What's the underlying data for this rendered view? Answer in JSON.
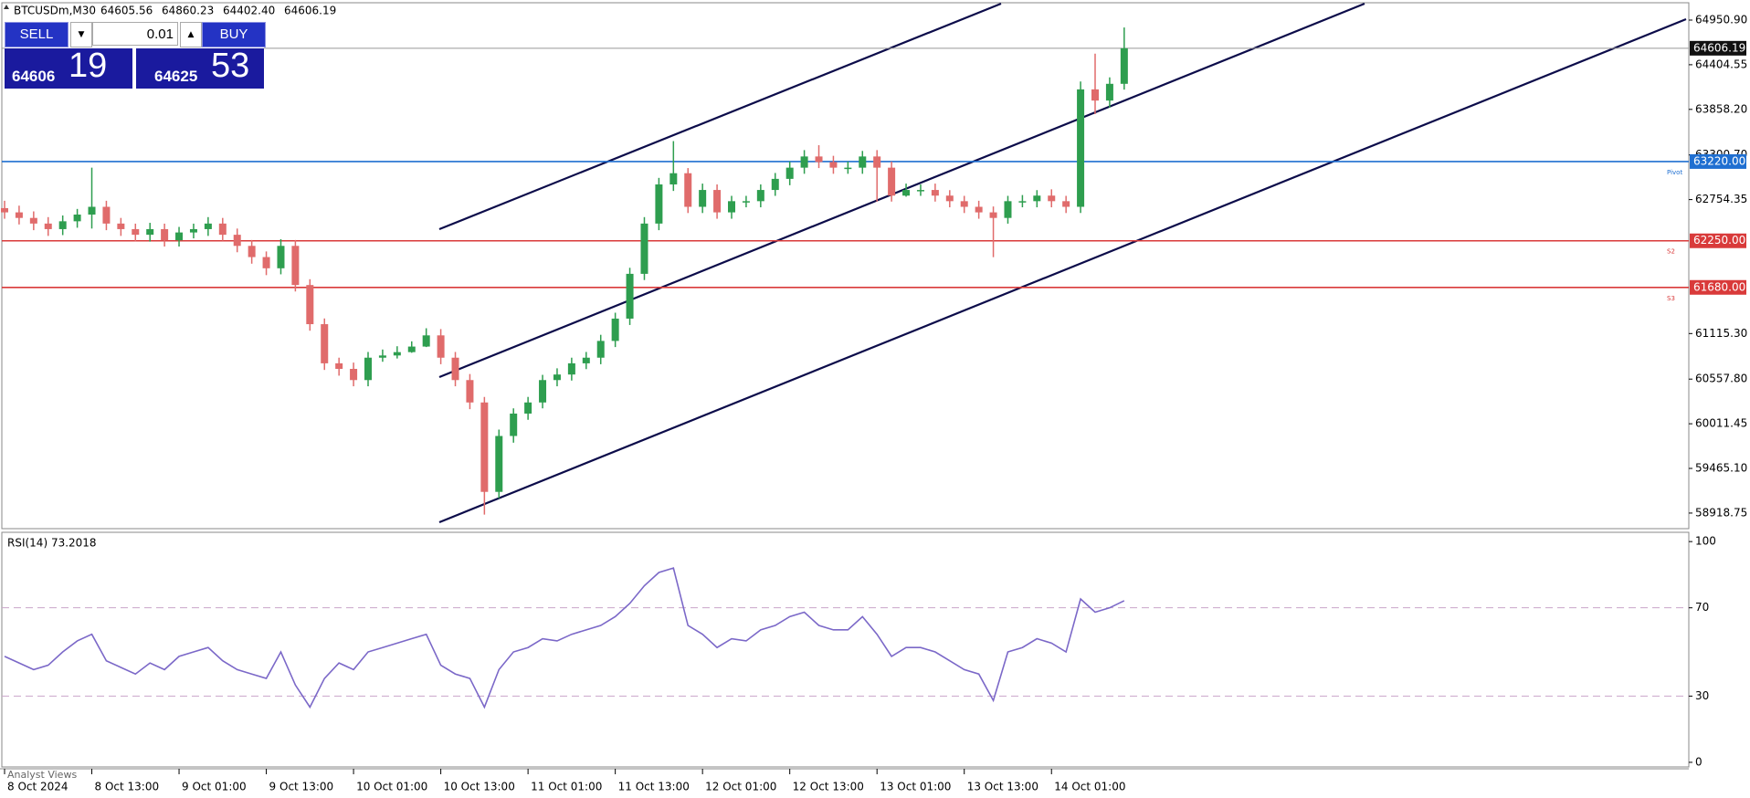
{
  "toolbar": {
    "symbol": "BTCUSDm,M30",
    "quote": [
      "64605.56",
      "64860.23",
      "64402.40",
      "64606.19"
    ],
    "sell": "SELL",
    "buy": "BUY",
    "lot": "0.01",
    "bid": [
      "64606",
      "19"
    ],
    "ask": [
      "64625",
      "53"
    ],
    "footer": "Analyst Views"
  },
  "chart_data": [
    {
      "type": "candlestick",
      "up_color": "#2e9e4f",
      "down_color": "#e06b6b",
      "open": [
        62650,
        62598,
        62530,
        62461,
        62393,
        62489,
        62571,
        62666,
        62461,
        62393,
        62324,
        62393,
        62256,
        62352,
        62393,
        62461,
        62324,
        62188,
        62051,
        61914,
        62188,
        61709,
        61230,
        60751,
        60683,
        60546,
        60820,
        60847,
        60888,
        60956,
        61093,
        60820,
        60546,
        60272,
        59178,
        59862,
        60136,
        60272,
        60546,
        60614,
        60751,
        60820,
        61025,
        61298,
        61846,
        62461,
        62940,
        63077,
        62666,
        62872,
        62598,
        62735,
        62735,
        62872,
        63008,
        63145,
        63282,
        63214,
        63145,
        63145,
        63282,
        63145,
        62803,
        62872,
        62872,
        62803,
        62735,
        62666,
        62598,
        62530,
        62735,
        62735,
        62803,
        62735,
        62666,
        64103,
        63966,
        64171
      ],
      "high": [
        62740,
        62680,
        62610,
        62540,
        62560,
        62640,
        63145,
        62740,
        62530,
        62460,
        62470,
        62460,
        62420,
        62460,
        62540,
        62530,
        62400,
        62260,
        62120,
        62270,
        62260,
        61780,
        61300,
        60820,
        60760,
        60890,
        60920,
        60960,
        61020,
        61180,
        61170,
        60890,
        60620,
        60340,
        59940,
        60200,
        60340,
        60610,
        60690,
        60820,
        60890,
        61100,
        61370,
        61920,
        62540,
        63020,
        63470,
        63140,
        62950,
        62940,
        62800,
        62800,
        62940,
        63080,
        63220,
        63360,
        63420,
        63290,
        63220,
        63350,
        63360,
        63220,
        62950,
        62940,
        62950,
        62870,
        62800,
        62740,
        62670,
        62800,
        62810,
        62870,
        62880,
        62800,
        64200,
        64540,
        64250,
        64860.23
      ],
      "low": [
        62520,
        62450,
        62380,
        62310,
        62320,
        62410,
        62400,
        62380,
        62310,
        62240,
        62240,
        62180,
        62180,
        62280,
        62310,
        62250,
        62110,
        61970,
        61830,
        61840,
        61630,
        61150,
        60670,
        60600,
        60470,
        60470,
        60770,
        60810,
        60880,
        60950,
        60740,
        60470,
        60190,
        58900,
        59100,
        59780,
        60060,
        60200,
        60470,
        60540,
        60680,
        60740,
        60950,
        61220,
        61770,
        62380,
        62860,
        62590,
        62590,
        62520,
        62520,
        62660,
        62660,
        62800,
        62930,
        63070,
        63140,
        63070,
        63070,
        63070,
        62730,
        62730,
        62790,
        62800,
        62730,
        62660,
        62590,
        62520,
        62050,
        62460,
        62660,
        62660,
        62660,
        62590,
        62590,
        63800,
        63880,
        64100
      ],
      "close": [
        62598,
        62530,
        62461,
        62393,
        62489,
        62571,
        62666,
        62461,
        62393,
        62324,
        62393,
        62256,
        62352,
        62393,
        62461,
        62324,
        62188,
        62051,
        61914,
        62188,
        61709,
        61230,
        60751,
        60683,
        60546,
        60820,
        60847,
        60888,
        60956,
        61093,
        60820,
        60546,
        60272,
        59178,
        59862,
        60136,
        60272,
        60546,
        60614,
        60751,
        60820,
        61025,
        61298,
        61846,
        62461,
        62940,
        63077,
        62666,
        62872,
        62598,
        62735,
        62735,
        62872,
        63008,
        63145,
        63282,
        63214,
        63145,
        63145,
        63282,
        63145,
        62803,
        62872,
        62872,
        62803,
        62735,
        62666,
        62598,
        62530,
        62735,
        62735,
        62803,
        62735,
        62666,
        64103,
        63966,
        64171,
        64606.19
      ],
      "ylim": [
        58728,
        65163
      ],
      "yticks": [
        {
          "value": 64950.9,
          "label": "64950.90"
        },
        {
          "value": 64404.55,
          "label": "64404.55"
        },
        {
          "value": 63858.2,
          "label": "63858.20"
        },
        {
          "value": 63300.7,
          "label": "63300.70"
        },
        {
          "value": 62754.35,
          "label": "62754.35"
        },
        {
          "value": 61115.3,
          "label": "61115.30"
        },
        {
          "value": 60557.8,
          "label": "60557.80"
        },
        {
          "value": 60011.45,
          "label": "60011.45"
        },
        {
          "value": 59465.1,
          "label": "59465.10"
        },
        {
          "value": 58918.75,
          "label": "58918.75"
        }
      ],
      "xlim": [
        -0.3,
        120
      ],
      "xticks": [
        {
          "value": 0,
          "label": "8 Oct 2024"
        },
        {
          "value": 6,
          "label": "8 Oct 13:00"
        },
        {
          "value": 12,
          "label": "9 Oct 01:00"
        },
        {
          "value": 18,
          "label": "9 Oct 13:00"
        },
        {
          "value": 24,
          "label": "10 Oct 01:00"
        },
        {
          "value": 30,
          "label": "10 Oct 13:00"
        },
        {
          "value": 36,
          "label": "11 Oct 01:00"
        },
        {
          "value": 42,
          "label": "11 Oct 13:00"
        },
        {
          "value": 48,
          "label": "12 Oct 01:00"
        },
        {
          "value": 54,
          "label": "12 Oct 13:00"
        },
        {
          "value": 60,
          "label": "13 Oct 01:00"
        },
        {
          "value": 66,
          "label": "13 Oct 13:00"
        },
        {
          "value": 72,
          "label": "14 Oct 01:00"
        }
      ],
      "price_line": {
        "value": 64606.19,
        "label": "64606.19"
      },
      "levels": [
        {
          "value": 63220,
          "label": "63220.00",
          "name": "Pivot",
          "color": "#1f6fd1"
        },
        {
          "value": 62250,
          "label": "62250.00",
          "name": "S2",
          "color": "#d93a3a"
        },
        {
          "value": 61680,
          "label": "61680.00",
          "name": "S3",
          "color": "#d93a3a"
        }
      ]
    },
    {
      "type": "line",
      "title": "RSI(14) 73.2018",
      "color": "#7b68c8",
      "values": [
        48,
        45,
        42,
        44,
        50,
        55,
        58,
        46,
        43,
        40,
        45,
        42,
        48,
        50,
        52,
        46,
        42,
        40,
        38,
        50,
        35,
        25,
        38,
        45,
        42,
        50,
        52,
        54,
        56,
        58,
        44,
        40,
        38,
        25,
        42,
        50,
        52,
        56,
        55,
        58,
        60,
        62,
        66,
        72,
        80,
        86,
        88,
        62,
        58,
        52,
        56,
        55,
        60,
        62,
        66,
        68,
        62,
        60,
        60,
        66,
        58,
        48,
        52,
        52,
        50,
        46,
        42,
        40,
        28,
        50,
        52,
        56,
        54,
        50,
        74,
        68,
        70,
        73.2018
      ],
      "ylim": [
        -2.1,
        104.2
      ],
      "yticks": [
        100,
        70,
        30,
        0
      ]
    }
  ]
}
